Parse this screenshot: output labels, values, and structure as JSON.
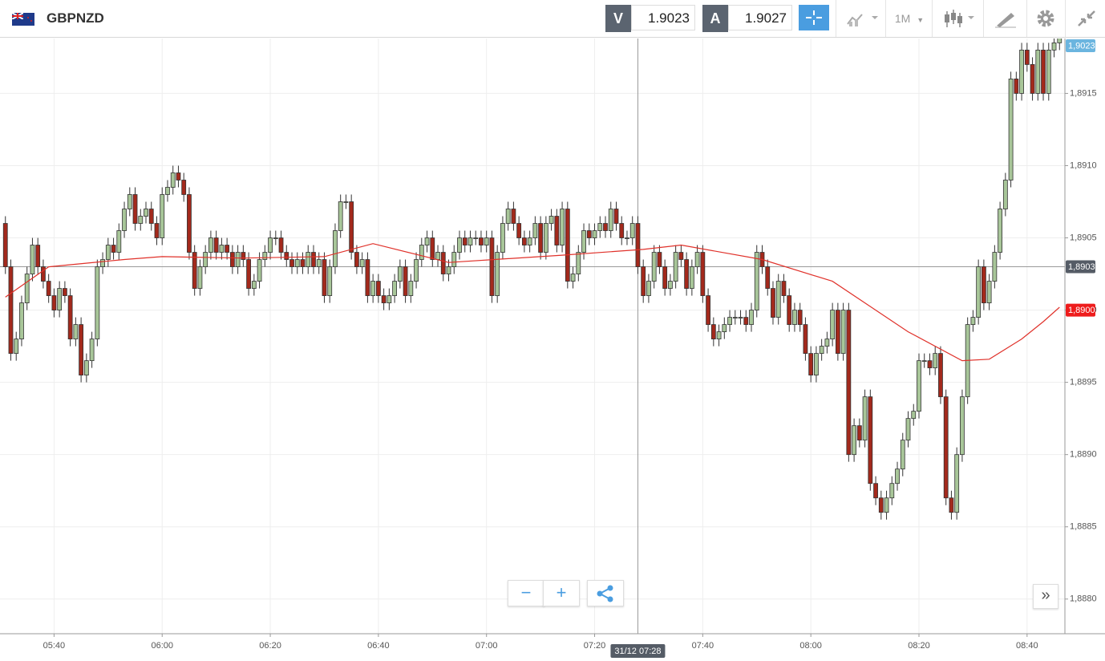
{
  "header": {
    "symbol": "GBPNZD",
    "sell": {
      "label": "V",
      "price": "1.9023"
    },
    "buy": {
      "label": "A",
      "price": "1.9027"
    },
    "timeframe": "1M"
  },
  "chart_data": {
    "type": "candlestick",
    "up_color": "#a8c699",
    "down_color": "#a3291c",
    "grid": true,
    "xlim": [
      "05:30",
      "08:47"
    ],
    "ylim": [
      1.88776,
      1.89188
    ],
    "xticks": [
      "05:40",
      "06:00",
      "06:20",
      "06:40",
      "07:00",
      "07:20",
      "07:40",
      "08:00",
      "08:20",
      "08:40"
    ],
    "yticks": [
      {
        "value": 1.888,
        "label": "1,8880"
      },
      {
        "value": 1.8885,
        "label": "1,8885"
      },
      {
        "value": 1.889,
        "label": "1,8890"
      },
      {
        "value": 1.8895,
        "label": "1,8895"
      },
      {
        "value": 1.89,
        "label": "1,8900"
      },
      {
        "value": 1.8905,
        "label": "1,8905"
      },
      {
        "value": 1.891,
        "label": "1,8910"
      },
      {
        "value": 1.8915,
        "label": "1,8915"
      }
    ],
    "x": [
      "05:31",
      "05:32",
      "05:33",
      "05:34",
      "05:35",
      "05:36",
      "05:37",
      "05:38",
      "05:39",
      "05:40",
      "05:41",
      "05:42",
      "05:43",
      "05:44",
      "05:45",
      "05:46",
      "05:47",
      "05:48",
      "05:49",
      "05:50",
      "05:51",
      "05:52",
      "05:53",
      "05:54",
      "05:55",
      "05:56",
      "05:57",
      "05:58",
      "05:59",
      "06:00",
      "06:01",
      "06:02",
      "06:03",
      "06:04",
      "06:05",
      "06:06",
      "06:07",
      "06:08",
      "06:09",
      "06:10",
      "06:11",
      "06:12",
      "06:13",
      "06:14",
      "06:15",
      "06:16",
      "06:17",
      "06:18",
      "06:19",
      "06:20",
      "06:21",
      "06:22",
      "06:23",
      "06:24",
      "06:25",
      "06:26",
      "06:27",
      "06:28",
      "06:29",
      "06:30",
      "06:31",
      "06:32",
      "06:33",
      "06:34",
      "06:35",
      "06:36",
      "06:37",
      "06:38",
      "06:39",
      "06:40",
      "06:41",
      "06:42",
      "06:43",
      "06:44",
      "06:45",
      "06:46",
      "06:47",
      "06:48",
      "06:49",
      "06:50",
      "06:51",
      "06:52",
      "06:53",
      "06:54",
      "06:55",
      "06:56",
      "06:57",
      "06:58",
      "06:59",
      "07:00",
      "07:01",
      "07:02",
      "07:03",
      "07:04",
      "07:05",
      "07:06",
      "07:07",
      "07:08",
      "07:09",
      "07:10",
      "07:11",
      "07:12",
      "07:13",
      "07:14",
      "07:15",
      "07:16",
      "07:17",
      "07:18",
      "07:19",
      "07:20",
      "07:21",
      "07:22",
      "07:23",
      "07:24",
      "07:25",
      "07:26",
      "07:27",
      "07:28",
      "07:29",
      "07:30",
      "07:31",
      "07:32",
      "07:33",
      "07:34",
      "07:35",
      "07:36",
      "07:37",
      "07:38",
      "07:39",
      "07:40",
      "07:41",
      "07:42",
      "07:43",
      "07:44",
      "07:45",
      "07:46",
      "07:47",
      "07:48",
      "07:49",
      "07:50",
      "07:51",
      "07:52",
      "07:53",
      "07:54",
      "07:55",
      "07:56",
      "07:57",
      "07:58",
      "07:59",
      "08:00",
      "08:01",
      "08:02",
      "08:03",
      "08:04",
      "08:05",
      "08:06",
      "08:07",
      "08:08",
      "08:09",
      "08:10",
      "08:11",
      "08:12",
      "08:13",
      "08:14",
      "08:15",
      "08:16",
      "08:17",
      "08:18",
      "08:19",
      "08:20",
      "08:21",
      "08:22",
      "08:23",
      "08:24",
      "08:25",
      "08:26",
      "08:27",
      "08:28",
      "08:29",
      "08:30",
      "08:31",
      "08:32",
      "08:33",
      "08:34",
      "08:35",
      "08:36",
      "08:37",
      "08:38",
      "08:39",
      "08:40",
      "08:41",
      "08:42",
      "08:43",
      "08:44",
      "08:45",
      "08:46"
    ],
    "open": [
      1.8906,
      1.8903,
      1.8897,
      1.8898,
      1.89005,
      1.89025,
      1.89045,
      1.8903,
      1.8902,
      1.8901,
      1.89,
      1.89015,
      1.8901,
      1.8898,
      1.8899,
      1.88955,
      1.88965,
      1.8898,
      1.8903,
      1.89035,
      1.89045,
      1.8904,
      1.89055,
      1.8907,
      1.8908,
      1.8906,
      1.89065,
      1.8907,
      1.8906,
      1.8905,
      1.8908,
      1.89085,
      1.89095,
      1.8909,
      1.8908,
      1.8904,
      1.89015,
      1.8903,
      1.8904,
      1.8905,
      1.8904,
      1.89045,
      1.8904,
      1.8903,
      1.8904,
      1.89035,
      1.89015,
      1.8902,
      1.89035,
      1.8904,
      1.8905,
      1.8905,
      1.8904,
      1.89035,
      1.8903,
      1.89035,
      1.8903,
      1.8904,
      1.8903,
      1.89035,
      1.8901,
      1.8903,
      1.89055,
      1.89075,
      1.89075,
      1.8904,
      1.8903,
      1.89035,
      1.8901,
      1.8902,
      1.8901,
      1.89005,
      1.8901,
      1.8902,
      1.8903,
      1.8901,
      1.8902,
      1.89035,
      1.89045,
      1.8905,
      1.89035,
      1.8904,
      1.89025,
      1.8903,
      1.8904,
      1.8905,
      1.89045,
      1.8905,
      1.8905,
      1.89045,
      1.8905,
      1.8901,
      1.8904,
      1.8906,
      1.8907,
      1.8906,
      1.8905,
      1.89045,
      1.8905,
      1.8906,
      1.8904,
      1.8906,
      1.89065,
      1.89045,
      1.8907,
      1.8902,
      1.89025,
      1.8904,
      1.89055,
      1.8905,
      1.89055,
      1.8906,
      1.89055,
      1.8907,
      1.8906,
      1.8905,
      1.8905,
      1.8906,
      1.8903,
      1.8901,
      1.8902,
      1.8904,
      1.8903,
      1.89015,
      1.8902,
      1.8904,
      1.89035,
      1.89015,
      1.8903,
      1.8904,
      1.8901,
      1.8899,
      1.8898,
      1.88985,
      1.8899,
      1.88995,
      1.88995,
      1.88995,
      1.8899,
      1.89,
      1.8904,
      1.8903,
      1.89015,
      1.88995,
      1.8902,
      1.8901,
      1.8899,
      1.89,
      1.8899,
      1.8897,
      1.88955,
      1.8897,
      1.88975,
      1.8898,
      1.89,
      1.8897,
      1.89,
      1.889,
      1.8892,
      1.8891,
      1.8894,
      1.8888,
      1.8887,
      1.8886,
      1.8887,
      1.8888,
      1.8889,
      1.8891,
      1.88925,
      1.8893,
      1.88965,
      1.88965,
      1.8896,
      1.8897,
      1.8894,
      1.8887,
      1.8886,
      1.889,
      1.8894,
      1.8899,
      1.88995,
      1.8903,
      1.89005,
      1.8902,
      1.8904,
      1.8907,
      1.8909,
      1.8916,
      1.8915,
      1.8918,
      1.8917,
      1.8915,
      1.8918,
      1.8915,
      1.8918,
      1.89185
    ],
    "high": [
      1.89065,
      1.89035,
      1.88985,
      1.8901,
      1.8903,
      1.8905,
      1.8905,
      1.89035,
      1.89025,
      1.89015,
      1.8902,
      1.8902,
      1.89015,
      1.88995,
      1.88995,
      1.8897,
      1.88985,
      1.89035,
      1.8904,
      1.8905,
      1.8905,
      1.8906,
      1.89075,
      1.89085,
      1.89085,
      1.8907,
      1.89075,
      1.89075,
      1.89065,
      1.89085,
      1.8909,
      1.891,
      1.891,
      1.89095,
      1.89085,
      1.89045,
      1.89035,
      1.89045,
      1.89055,
      1.89055,
      1.8905,
      1.8905,
      1.89045,
      1.89045,
      1.89045,
      1.8904,
      1.89025,
      1.8904,
      1.89045,
      1.89055,
      1.89055,
      1.89055,
      1.89045,
      1.8904,
      1.8904,
      1.8904,
      1.89045,
      1.89045,
      1.8904,
      1.8904,
      1.89035,
      1.8906,
      1.8908,
      1.8908,
      1.8908,
      1.89045,
      1.8904,
      1.8904,
      1.89025,
      1.89025,
      1.89015,
      1.89015,
      1.89025,
      1.89035,
      1.89035,
      1.89025,
      1.8904,
      1.8905,
      1.89055,
      1.89055,
      1.89045,
      1.89045,
      1.89035,
      1.89045,
      1.89055,
      1.89055,
      1.89055,
      1.89055,
      1.89055,
      1.89055,
      1.89055,
      1.89045,
      1.89065,
      1.89075,
      1.89075,
      1.89065,
      1.89055,
      1.89055,
      1.89065,
      1.89065,
      1.89065,
      1.8907,
      1.8907,
      1.89075,
      1.89075,
      1.8903,
      1.89045,
      1.8906,
      1.8906,
      1.8906,
      1.89065,
      1.89065,
      1.89075,
      1.89075,
      1.89065,
      1.89055,
      1.89065,
      1.89065,
      1.89035,
      1.89025,
      1.89045,
      1.89045,
      1.89035,
      1.89025,
      1.89045,
      1.89045,
      1.8904,
      1.89035,
      1.89045,
      1.89045,
      1.89015,
      1.88995,
      1.8899,
      1.88995,
      1.89,
      1.89,
      1.89,
      1.89,
      1.89005,
      1.89045,
      1.89045,
      1.89035,
      1.8902,
      1.89025,
      1.89025,
      1.89015,
      1.89005,
      1.89005,
      1.88995,
      1.88975,
      1.88975,
      1.8898,
      1.88985,
      1.89005,
      1.89005,
      1.89005,
      1.89005,
      1.88925,
      1.88925,
      1.88945,
      1.88945,
      1.88885,
      1.88875,
      1.88875,
      1.88885,
      1.88895,
      1.88915,
      1.8893,
      1.88935,
      1.8897,
      1.8897,
      1.8897,
      1.88975,
      1.88975,
      1.88945,
      1.88875,
      1.88905,
      1.88945,
      1.88995,
      1.89,
      1.89035,
      1.89035,
      1.89025,
      1.89045,
      1.89075,
      1.89095,
      1.89165,
      1.89165,
      1.89185,
      1.89185,
      1.89175,
      1.89185,
      1.89185,
      1.89185,
      1.8919,
      1.89195
    ],
    "low": [
      1.89025,
      1.88965,
      1.88965,
      1.88975,
      1.89,
      1.8902,
      1.89025,
      1.89015,
      1.89005,
      1.88995,
      1.88995,
      1.89005,
      1.88975,
      1.88975,
      1.8895,
      1.8895,
      1.8896,
      1.88975,
      1.89025,
      1.8903,
      1.89035,
      1.89035,
      1.8905,
      1.89065,
      1.89055,
      1.89055,
      1.8906,
      1.89055,
      1.89045,
      1.89045,
      1.89075,
      1.8908,
      1.89085,
      1.89075,
      1.89035,
      1.8901,
      1.8901,
      1.89025,
      1.89035,
      1.89035,
      1.89035,
      1.89035,
      1.89025,
      1.89025,
      1.8903,
      1.8901,
      1.8901,
      1.89015,
      1.8903,
      1.89035,
      1.89045,
      1.89035,
      1.8903,
      1.89025,
      1.89025,
      1.89025,
      1.89025,
      1.89025,
      1.89025,
      1.89005,
      1.89005,
      1.89025,
      1.8905,
      1.8907,
      1.89035,
      1.89025,
      1.89025,
      1.89005,
      1.89005,
      1.89005,
      1.89,
      1.89,
      1.89005,
      1.89015,
      1.89005,
      1.89005,
      1.89015,
      1.8903,
      1.8904,
      1.8903,
      1.8903,
      1.8902,
      1.8902,
      1.89025,
      1.89035,
      1.8904,
      1.8904,
      1.89045,
      1.8904,
      1.8904,
      1.89005,
      1.89005,
      1.89035,
      1.89055,
      1.89055,
      1.89045,
      1.8904,
      1.8904,
      1.89045,
      1.89035,
      1.89035,
      1.89055,
      1.8904,
      1.8904,
      1.89015,
      1.89015,
      1.8902,
      1.89035,
      1.89045,
      1.89045,
      1.8905,
      1.8905,
      1.8905,
      1.89055,
      1.89045,
      1.89045,
      1.89045,
      1.89025,
      1.89005,
      1.89005,
      1.89015,
      1.89025,
      1.8901,
      1.8901,
      1.89015,
      1.8903,
      1.8901,
      1.8901,
      1.89025,
      1.89005,
      1.88985,
      1.88975,
      1.88975,
      1.8898,
      1.88985,
      1.8899,
      1.8899,
      1.88985,
      1.88985,
      1.88995,
      1.89025,
      1.8901,
      1.8899,
      1.8899,
      1.89005,
      1.88985,
      1.88985,
      1.88985,
      1.88965,
      1.8895,
      1.8895,
      1.88965,
      1.8897,
      1.88975,
      1.88965,
      1.88965,
      1.88895,
      1.88895,
      1.88905,
      1.88905,
      1.88875,
      1.88865,
      1.88855,
      1.88855,
      1.88865,
      1.88875,
      1.88885,
      1.88905,
      1.8892,
      1.88925,
      1.8896,
      1.88955,
      1.88955,
      1.88935,
      1.88865,
      1.88855,
      1.88855,
      1.88895,
      1.88935,
      1.88985,
      1.8899,
      1.89,
      1.89,
      1.89015,
      1.89035,
      1.89065,
      1.89085,
      1.89145,
      1.89145,
      1.89165,
      1.89145,
      1.89145,
      1.89145,
      1.89145,
      1.89175,
      1.8918
    ],
    "close": [
      1.8903,
      1.8897,
      1.8898,
      1.89005,
      1.89025,
      1.89045,
      1.8903,
      1.8902,
      1.8901,
      1.89,
      1.89015,
      1.8901,
      1.8898,
      1.8899,
      1.88955,
      1.88965,
      1.8898,
      1.8903,
      1.89035,
      1.89045,
      1.8904,
      1.89055,
      1.8907,
      1.8908,
      1.8906,
      1.89065,
      1.8907,
      1.8906,
      1.8905,
      1.8908,
      1.89085,
      1.89095,
      1.8909,
      1.8908,
      1.8904,
      1.89015,
      1.8903,
      1.8904,
      1.8905,
      1.8904,
      1.89045,
      1.8904,
      1.8903,
      1.8904,
      1.89035,
      1.89015,
      1.8902,
      1.89035,
      1.8904,
      1.8905,
      1.8905,
      1.8904,
      1.89035,
      1.8903,
      1.89035,
      1.8903,
      1.8904,
      1.8903,
      1.89035,
      1.8901,
      1.8903,
      1.89055,
      1.89075,
      1.89075,
      1.8904,
      1.8903,
      1.89035,
      1.8901,
      1.8902,
      1.8901,
      1.89005,
      1.8901,
      1.8902,
      1.8903,
      1.8901,
      1.8902,
      1.89035,
      1.89045,
      1.8905,
      1.89035,
      1.8904,
      1.89025,
      1.8903,
      1.8904,
      1.8905,
      1.89045,
      1.8905,
      1.8905,
      1.89045,
      1.8905,
      1.8901,
      1.8904,
      1.8906,
      1.8907,
      1.8906,
      1.8905,
      1.89045,
      1.8905,
      1.8906,
      1.8904,
      1.8906,
      1.89065,
      1.89045,
      1.8907,
      1.8902,
      1.89025,
      1.8904,
      1.89055,
      1.8905,
      1.89055,
      1.8906,
      1.89055,
      1.8907,
      1.8906,
      1.8905,
      1.8905,
      1.8906,
      1.8903,
      1.8901,
      1.8902,
      1.8904,
      1.8903,
      1.89015,
      1.8902,
      1.8904,
      1.89035,
      1.89015,
      1.8903,
      1.8904,
      1.8901,
      1.8899,
      1.8898,
      1.88985,
      1.8899,
      1.88995,
      1.88995,
      1.88995,
      1.8899,
      1.89,
      1.8904,
      1.8903,
      1.89015,
      1.88995,
      1.8902,
      1.8901,
      1.8899,
      1.89,
      1.8899,
      1.8897,
      1.88955,
      1.8897,
      1.88975,
      1.8898,
      1.89,
      1.8897,
      1.89,
      1.889,
      1.8892,
      1.8891,
      1.8894,
      1.8888,
      1.8887,
      1.8886,
      1.8887,
      1.8888,
      1.8889,
      1.8891,
      1.88925,
      1.8893,
      1.88965,
      1.88965,
      1.8896,
      1.8897,
      1.8894,
      1.8887,
      1.8886,
      1.889,
      1.8894,
      1.8899,
      1.88995,
      1.8903,
      1.89005,
      1.8902,
      1.8904,
      1.8907,
      1.8909,
      1.8916,
      1.8915,
      1.8918,
      1.8917,
      1.8915,
      1.8918,
      1.8915,
      1.8918,
      1.89185,
      1.8919
    ],
    "moving_average": {
      "color": "#e0312a",
      "x": [
        "05:31",
        "05:39",
        "05:53",
        "06:00",
        "06:15",
        "06:30",
        "06:39",
        "06:53",
        "07:14",
        "07:29",
        "07:36",
        "07:51",
        "08:04",
        "08:18",
        "08:28",
        "08:33",
        "08:39",
        "08:43",
        "08:46"
      ],
      "values": [
        1.89009,
        1.8903,
        1.89035,
        1.89037,
        1.89036,
        1.89037,
        1.89046,
        1.89033,
        1.89038,
        1.89042,
        1.89045,
        1.89035,
        1.8902,
        1.88985,
        1.88965,
        1.88966,
        1.8898,
        1.88992,
        1.89002
      ]
    },
    "last_price": {
      "value": 1.9023,
      "label": "1,9023",
      "color": "#6bb5df"
    },
    "current_price": {
      "value": 1.89,
      "label": "1,8900",
      "color": "#ee1c1c"
    },
    "crosshair": {
      "x": "07:28",
      "x_label": "31/12 07:28",
      "y": {
        "value": 1.8903,
        "label": "1,8903"
      },
      "color": "#555c66"
    }
  }
}
